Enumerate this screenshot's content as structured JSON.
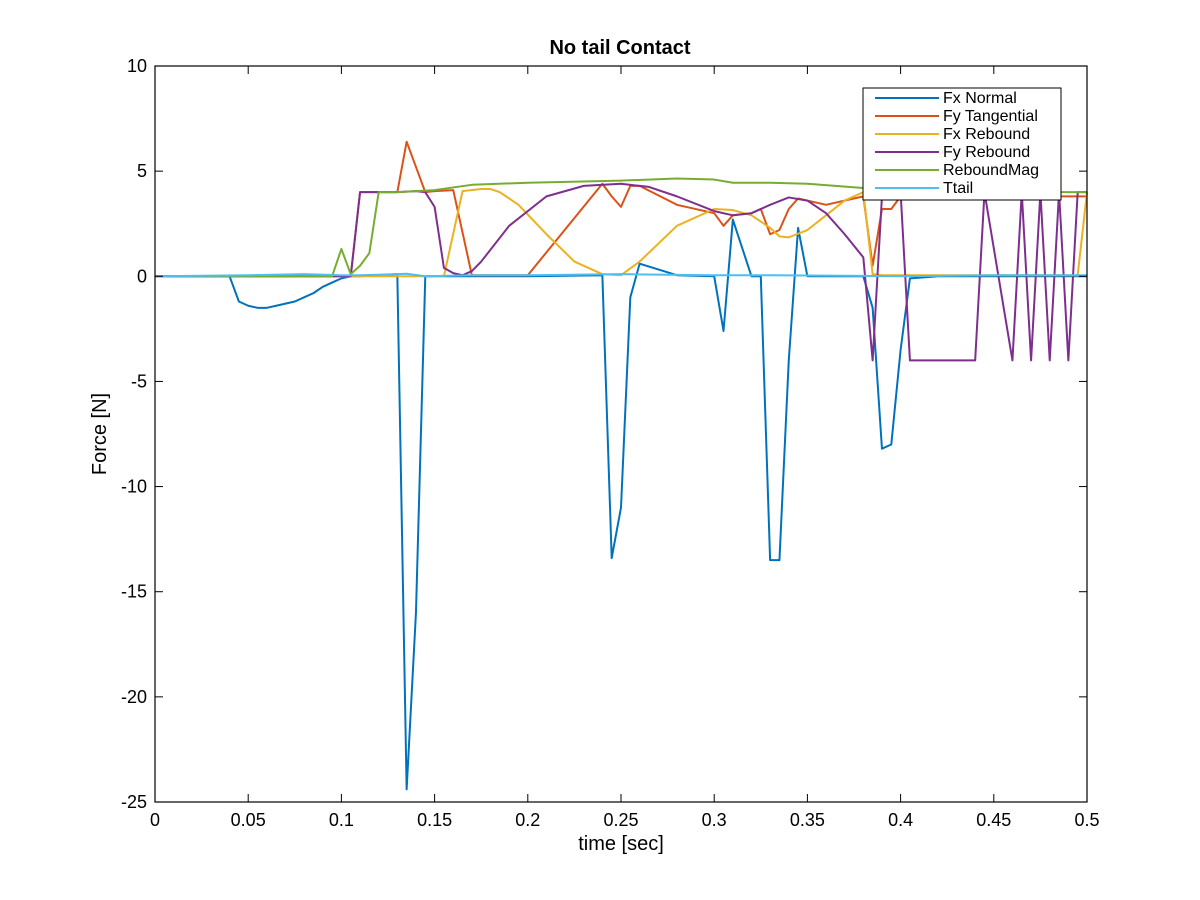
{
  "chart_data": {
    "type": "line",
    "title": "No tail Contact",
    "xlabel": "time [sec]",
    "ylabel": "Force [N]",
    "xlim": [
      0,
      0.5
    ],
    "ylim": [
      -25,
      10
    ],
    "xticks": [
      0,
      0.05,
      0.1,
      0.15,
      0.2,
      0.25,
      0.3,
      0.35,
      0.4,
      0.45,
      0.5
    ],
    "xtick_labels": [
      "0",
      "0.05",
      "0.1",
      "0.15",
      "0.2",
      "0.25",
      "0.3",
      "0.35",
      "0.4",
      "0.45",
      "0.5"
    ],
    "yticks": [
      -25,
      -20,
      -15,
      -10,
      -5,
      0,
      5,
      10
    ],
    "ytick_labels": [
      "-25",
      "-20",
      "-15",
      "-10",
      "-5",
      "0",
      "5",
      "10"
    ],
    "grid": false,
    "legend_position": "top-right",
    "series": [
      {
        "name": "Fx Normal",
        "color": "#0072BD",
        "x": [
          0,
          0.04,
          0.045,
          0.05,
          0.055,
          0.06,
          0.065,
          0.07,
          0.075,
          0.08,
          0.085,
          0.09,
          0.095,
          0.1,
          0.105,
          0.11,
          0.12,
          0.13,
          0.135,
          0.14,
          0.145,
          0.15,
          0.16,
          0.17,
          0.2,
          0.24,
          0.245,
          0.25,
          0.255,
          0.26,
          0.28,
          0.3,
          0.305,
          0.31,
          0.32,
          0.325,
          0.33,
          0.335,
          0.34,
          0.345,
          0.35,
          0.38,
          0.385,
          0.39,
          0.395,
          0.4,
          0.405,
          0.42,
          0.45,
          0.5
        ],
        "y": [
          0,
          0,
          -1.2,
          -1.4,
          -1.5,
          -1.5,
          -1.4,
          -1.3,
          -1.2,
          -1.0,
          -0.8,
          -0.5,
          -0.3,
          -0.1,
          0,
          0,
          0.05,
          0.1,
          -24.4,
          -16,
          0,
          0,
          0,
          0,
          0,
          0.05,
          -13.4,
          -11,
          -1,
          0.6,
          0.05,
          0,
          -2.6,
          2.7,
          0,
          0,
          -13.5,
          -13.5,
          -4,
          2.3,
          0,
          0,
          -1.5,
          -8.2,
          -8.0,
          -3.5,
          -0.1,
          0,
          0,
          0
        ]
      },
      {
        "name": "Fy Tangential",
        "color": "#D95319",
        "x": [
          0,
          0.1,
          0.105,
          0.11,
          0.13,
          0.135,
          0.14,
          0.145,
          0.15,
          0.16,
          0.17,
          0.2,
          0.24,
          0.245,
          0.25,
          0.255,
          0.26,
          0.28,
          0.3,
          0.305,
          0.31,
          0.32,
          0.325,
          0.33,
          0.335,
          0.34,
          0.345,
          0.35,
          0.36,
          0.38,
          0.385,
          0.39,
          0.395,
          0.4,
          0.405,
          0.41,
          0.44,
          0.5
        ],
        "y": [
          0,
          0,
          0,
          4.0,
          4.0,
          6.4,
          5.2,
          4.0,
          4.05,
          4.1,
          0.05,
          0.05,
          4.4,
          3.8,
          3.3,
          4.3,
          4.3,
          3.4,
          3.0,
          2.4,
          2.9,
          3.0,
          3.2,
          2.0,
          2.2,
          3.2,
          3.7,
          3.6,
          3.4,
          3.8,
          0.5,
          3.2,
          3.2,
          3.8,
          3.8,
          3.8,
          3.8,
          3.8
        ]
      },
      {
        "name": "Fx Rebound",
        "color": "#EDB120",
        "x": [
          0,
          0.155,
          0.165,
          0.175,
          0.18,
          0.185,
          0.195,
          0.21,
          0.225,
          0.24,
          0.25,
          0.26,
          0.28,
          0.3,
          0.31,
          0.32,
          0.33,
          0.335,
          0.34,
          0.35,
          0.36,
          0.37,
          0.38,
          0.385,
          0.39,
          0.4,
          0.42,
          0.44,
          0.46,
          0.49,
          0.495,
          0.5
        ],
        "y": [
          0,
          0,
          4.05,
          4.15,
          4.15,
          4.0,
          3.4,
          2.0,
          0.7,
          0.1,
          0.05,
          0.7,
          2.4,
          3.2,
          3.15,
          2.9,
          2.3,
          1.9,
          1.85,
          2.2,
          2.9,
          3.6,
          4.0,
          0.1,
          0.05,
          0.05,
          0.05,
          0.05,
          0.05,
          0.05,
          0.05,
          4.0
        ]
      },
      {
        "name": "Fy Rebound",
        "color": "#7E2F8E",
        "x": [
          0,
          0.1,
          0.105,
          0.11,
          0.13,
          0.14,
          0.145,
          0.15,
          0.155,
          0.16,
          0.165,
          0.17,
          0.175,
          0.19,
          0.21,
          0.23,
          0.25,
          0.265,
          0.28,
          0.3,
          0.31,
          0.32,
          0.33,
          0.34,
          0.35,
          0.36,
          0.37,
          0.38,
          0.385,
          0.39,
          0.395,
          0.4,
          0.405,
          0.44,
          0.445,
          0.46,
          0.465,
          0.47,
          0.475,
          0.48,
          0.485,
          0.49,
          0.495,
          0.5
        ],
        "y": [
          0,
          0,
          0,
          4.0,
          4.0,
          4.05,
          4.0,
          3.3,
          0.4,
          0.15,
          0.05,
          0.25,
          0.7,
          2.4,
          3.8,
          4.3,
          4.4,
          4.25,
          3.8,
          3.1,
          2.9,
          3.0,
          3.4,
          3.75,
          3.6,
          3.0,
          2.0,
          0.9,
          -4.0,
          3.8,
          3.8,
          4.0,
          -4.0,
          -4.0,
          4.0,
          -4.0,
          4.0,
          -4.0,
          4.0,
          -4.0,
          4.0,
          -4.0,
          4.0,
          4.0
        ]
      },
      {
        "name": "ReboundMag",
        "color": "#77AC30",
        "x": [
          0,
          0.095,
          0.1,
          0.105,
          0.11,
          0.115,
          0.12,
          0.13,
          0.15,
          0.17,
          0.2,
          0.25,
          0.28,
          0.3,
          0.31,
          0.33,
          0.35,
          0.38,
          0.4,
          0.42,
          0.45,
          0.5
        ],
        "y": [
          0,
          0,
          1.3,
          0.1,
          0.5,
          1.1,
          4.0,
          4.0,
          4.1,
          4.35,
          4.45,
          4.55,
          4.65,
          4.6,
          4.45,
          4.45,
          4.4,
          4.2,
          4.1,
          4.05,
          4.0,
          4.0
        ]
      },
      {
        "name": "Ttail",
        "color": "#4DBEEE",
        "x": [
          0,
          0.05,
          0.08,
          0.1,
          0.11,
          0.13,
          0.135,
          0.145,
          0.17,
          0.2,
          0.25,
          0.3,
          0.33,
          0.38,
          0.4,
          0.45,
          0.5
        ],
        "y": [
          0,
          0.05,
          0.1,
          0.05,
          0.05,
          0.1,
          0.12,
          0,
          0.05,
          0.05,
          0.1,
          0.05,
          0.05,
          0.02,
          0,
          0.05,
          0.05
        ]
      }
    ]
  }
}
